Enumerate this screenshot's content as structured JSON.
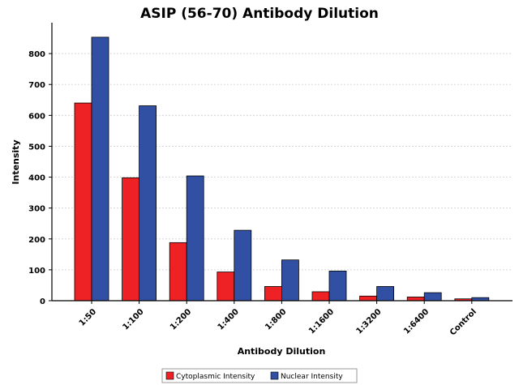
{
  "chart_data": {
    "type": "bar",
    "title": "ASIP (56-70) Antibody Dilution",
    "xlabel": "Antibody Dilution",
    "ylabel": "Intensity",
    "categories": [
      "1:50",
      "1:100",
      "1:200",
      "1:400",
      "1:800",
      "1:1600",
      "1:3200",
      "1:6400",
      "Control"
    ],
    "series": [
      {
        "name": "Cytoplasmic Intensity",
        "color": "#ee2224",
        "values": [
          640,
          398,
          188,
          93,
          46,
          29,
          15,
          12,
          6
        ]
      },
      {
        "name": "Nuclear Intensity",
        "color": "#3150a3",
        "values": [
          853,
          631,
          404,
          228,
          132,
          96,
          46,
          26,
          10
        ]
      }
    ],
    "ylim": [
      0,
      900
    ],
    "yticks": [
      0,
      100,
      200,
      300,
      400,
      500,
      600,
      700,
      800
    ],
    "grid": true,
    "legend_position": "bottom"
  }
}
